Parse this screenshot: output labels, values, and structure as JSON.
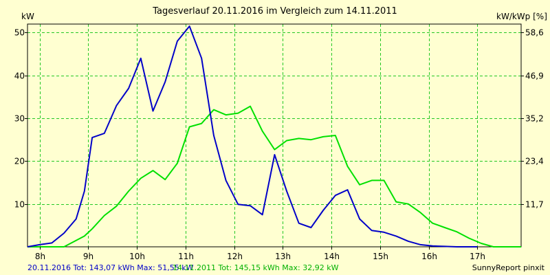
{
  "chart_data": {
    "type": "line",
    "title": "Tagesverlauf 20.11.2016 im Vergleich zum 14.11.2011",
    "ylabel": "kW",
    "y2label": "kW/kWp [%]",
    "xlim": [
      7.75,
      17.9
    ],
    "ylim": [
      0,
      52
    ],
    "x_ticks": [
      8,
      9,
      10,
      11,
      12,
      13,
      14,
      15,
      16,
      17
    ],
    "x_tick_labels": [
      "8h",
      "9h",
      "10h",
      "11h",
      "12h",
      "13h",
      "14h",
      "15h",
      "16h",
      "17h"
    ],
    "y_ticks": [
      10,
      20,
      30,
      40,
      50
    ],
    "y_tick_labels": [
      "10",
      "20",
      "30",
      "40",
      "50"
    ],
    "y2_ticks": [
      10,
      20,
      30,
      40,
      50
    ],
    "y2_tick_labels": [
      "11,7",
      "23,4",
      "35,2",
      "46,9",
      "58,6"
    ],
    "grid": true,
    "series": [
      {
        "name": "20.11.2016",
        "color": "#0000c8",
        "x": [
          7.75,
          8.0,
          8.25,
          8.5,
          8.75,
          8.92,
          9.08,
          9.33,
          9.58,
          9.83,
          10.08,
          10.33,
          10.58,
          10.83,
          11.08,
          11.33,
          11.58,
          11.83,
          12.08,
          12.33,
          12.58,
          12.83,
          13.08,
          13.33,
          13.58,
          13.83,
          14.08,
          14.33,
          14.58,
          14.83,
          15.08,
          15.33,
          15.58,
          15.83,
          16.08,
          16.33,
          16.58,
          16.83,
          17.0
        ],
        "values": [
          0.0,
          0.5,
          0.9,
          3.2,
          6.5,
          13.0,
          25.5,
          26.5,
          33.0,
          37.0,
          44.0,
          31.7,
          38.5,
          48.0,
          51.5,
          44.0,
          26.0,
          15.5,
          9.9,
          9.6,
          7.5,
          21.5,
          13.0,
          5.5,
          4.5,
          8.5,
          12.0,
          13.3,
          6.5,
          3.8,
          3.4,
          2.5,
          1.3,
          0.5,
          0.2,
          0.1,
          0.0,
          0.0,
          0.0
        ]
      },
      {
        "name": "14.11.2011",
        "color": "#00e000",
        "x": [
          7.75,
          8.0,
          8.25,
          8.5,
          8.75,
          8.92,
          9.08,
          9.33,
          9.58,
          9.83,
          10.08,
          10.33,
          10.58,
          10.83,
          11.08,
          11.33,
          11.58,
          11.83,
          12.08,
          12.33,
          12.58,
          12.83,
          13.08,
          13.33,
          13.58,
          13.83,
          14.08,
          14.33,
          14.58,
          14.83,
          15.08,
          15.33,
          15.58,
          15.83,
          16.08,
          16.33,
          16.58,
          16.83,
          17.08,
          17.33,
          17.58,
          17.9
        ],
        "values": [
          0.0,
          0.0,
          0.0,
          0.0,
          1.5,
          2.5,
          4.2,
          7.3,
          9.5,
          13.0,
          16.0,
          17.8,
          15.7,
          19.5,
          28.0,
          28.8,
          32.0,
          30.8,
          31.2,
          32.8,
          27.0,
          22.7,
          24.8,
          25.3,
          25.0,
          25.7,
          26.0,
          18.8,
          14.5,
          15.5,
          15.5,
          10.5,
          10.0,
          8.0,
          5.5,
          4.5,
          3.5,
          2.0,
          0.8,
          0.0,
          0.0,
          0.0
        ]
      }
    ],
    "legend_position": "bottom-left"
  },
  "footer": {
    "series1_text": "20.11.2016 Tot: 143,07 kWh Max: 51,55 kW",
    "series2_text": "14.11.2011 Tot: 145,15 kWh Max: 32,92 kW",
    "credit": "SunnyReport pinxit"
  }
}
